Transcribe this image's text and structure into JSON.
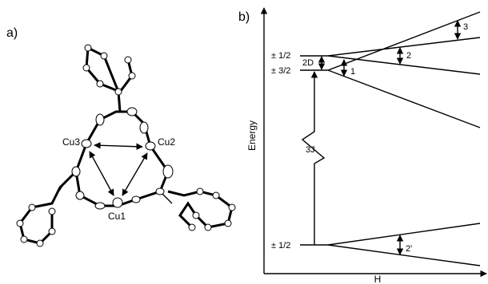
{
  "panel_a": {
    "label": "a)",
    "atoms": [
      "Cu1",
      "Cu2",
      "Cu3"
    ]
  },
  "panel_b": {
    "label": "b)",
    "y_axis": "Energy",
    "x_axis": "H",
    "levels": [
      "± 1/2",
      "± 3/2",
      "± 1/2"
    ],
    "gaps": [
      "2D",
      "3J"
    ],
    "transitions": [
      "1",
      "2",
      "3",
      "2'"
    ]
  }
}
